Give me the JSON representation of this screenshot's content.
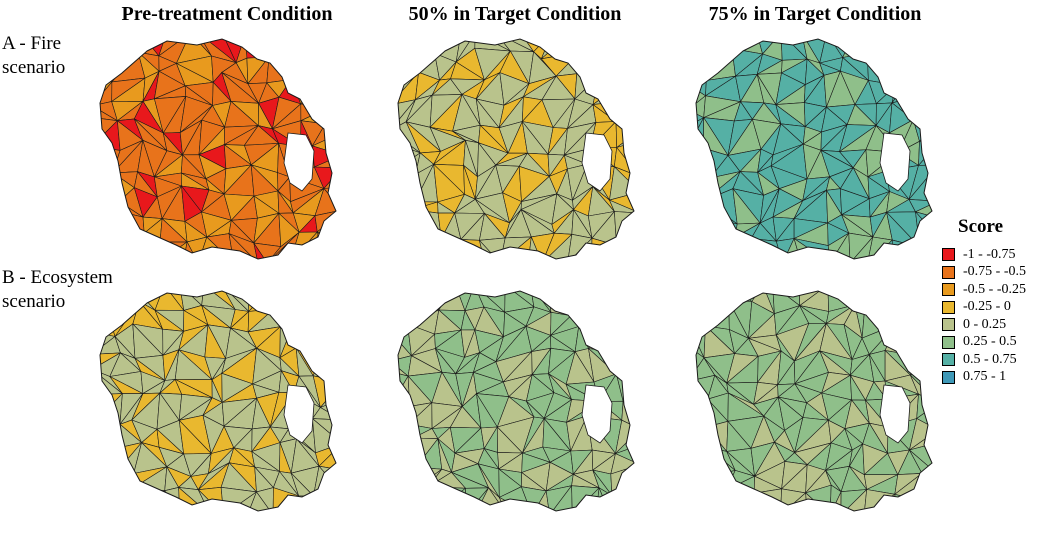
{
  "columns": {
    "pre": "Pre-treatment Condition",
    "target50": "50% in Target Condition",
    "target75": "75% in Target Condition"
  },
  "rows": {
    "fire": {
      "line1": "A - Fire",
      "line2": "scenario"
    },
    "ecosystem": {
      "line1": "B - Ecosystem",
      "line2": "scenario"
    }
  },
  "legend": {
    "title": "Score",
    "items": [
      {
        "label": "-1 - -0.75",
        "color": "#e8181c"
      },
      {
        "label": "-0.75 - -0.5",
        "color": "#e8731b"
      },
      {
        "label": "-0.5 - -0.25",
        "color": "#e89a1e"
      },
      {
        "label": "-0.25 - 0",
        "color": "#e9b82f"
      },
      {
        "label": "0 - 0.25",
        "color": "#b9c38c"
      },
      {
        "label": "0.25 - 0.5",
        "color": "#8fbf8a"
      },
      {
        "label": "0.5 - 0.75",
        "color": "#55b0a5"
      },
      {
        "label": "0.75 - 1",
        "color": "#3f99b8"
      }
    ]
  },
  "maps": [
    {
      "id": "fire-pre",
      "dominant": [
        "-0.75 - -0.5",
        "-0.5 - -0.25",
        "-1 - -0.75"
      ]
    },
    {
      "id": "fire-50",
      "dominant": [
        "0 - 0.25",
        "-0.25 - 0"
      ]
    },
    {
      "id": "fire-75",
      "dominant": [
        "0.5 - 0.75",
        "0.25 - 0.5"
      ]
    },
    {
      "id": "eco-pre",
      "dominant": [
        "0 - 0.25",
        "-0.25 - 0"
      ]
    },
    {
      "id": "eco-50",
      "dominant": [
        "0.25 - 0.5",
        "0 - 0.25"
      ]
    },
    {
      "id": "eco-75",
      "dominant": [
        "0.25 - 0.5",
        "0 - 0.25"
      ]
    }
  ]
}
